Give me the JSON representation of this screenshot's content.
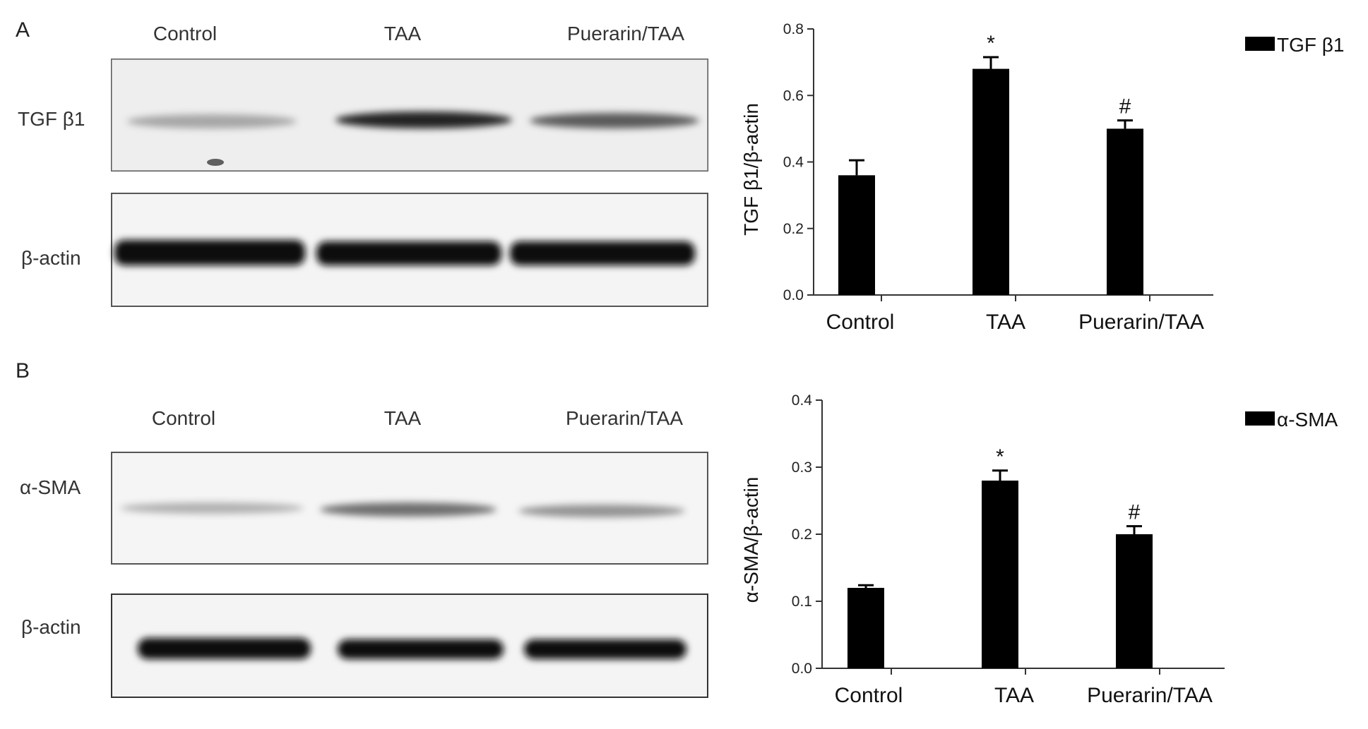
{
  "panels": [
    {
      "letter": "A",
      "blot": {
        "lane_labels": [
          "Control",
          "TAA",
          "Puerarin/TAA"
        ],
        "rows": [
          {
            "label": "TGF β1",
            "band_intensity": [
              0.3,
              0.85,
              0.62
            ]
          },
          {
            "label": "β-actin",
            "band_intensity": [
              1.0,
              1.0,
              1.0
            ]
          }
        ]
      }
    },
    {
      "letter": "B",
      "blot": {
        "lane_labels": [
          "Control",
          "TAA",
          "Puerarin/TAA"
        ],
        "rows": [
          {
            "label": "α-SMA",
            "band_intensity": [
              0.28,
              0.55,
              0.4
            ]
          },
          {
            "label": "β-actin",
            "band_intensity": [
              1.0,
              1.0,
              1.0
            ]
          }
        ]
      }
    }
  ],
  "chart_data": [
    {
      "type": "bar",
      "categories": [
        "Control",
        "TAA",
        "Puerarin/TAA"
      ],
      "series": [
        {
          "name": "TGF β1",
          "values": [
            0.36,
            0.68,
            0.5
          ],
          "errors": [
            0.045,
            0.035,
            0.025
          ]
        }
      ],
      "annotations": [
        "",
        "*",
        "#"
      ],
      "ylabel": "TGF β1/β-actin",
      "ylim": [
        0,
        0.8
      ],
      "yticks": [
        "0.0",
        "0.2",
        "0.4",
        "0.6",
        "0.8"
      ],
      "legend": "top-right",
      "bar_color": "#000000"
    },
    {
      "type": "bar",
      "categories": [
        "Control",
        "TAA",
        "Puerarin/TAA"
      ],
      "series": [
        {
          "name": "α-SMA",
          "values": [
            0.12,
            0.28,
            0.2
          ],
          "errors": [
            0.004,
            0.015,
            0.012
          ]
        }
      ],
      "annotations": [
        "",
        "*",
        "#"
      ],
      "ylabel": "α-SMA/β-actin",
      "ylim": [
        0,
        0.4
      ],
      "yticks": [
        "0.0",
        "0.1",
        "0.2",
        "0.3",
        "0.4"
      ],
      "legend": "top-right",
      "bar_color": "#000000"
    }
  ]
}
